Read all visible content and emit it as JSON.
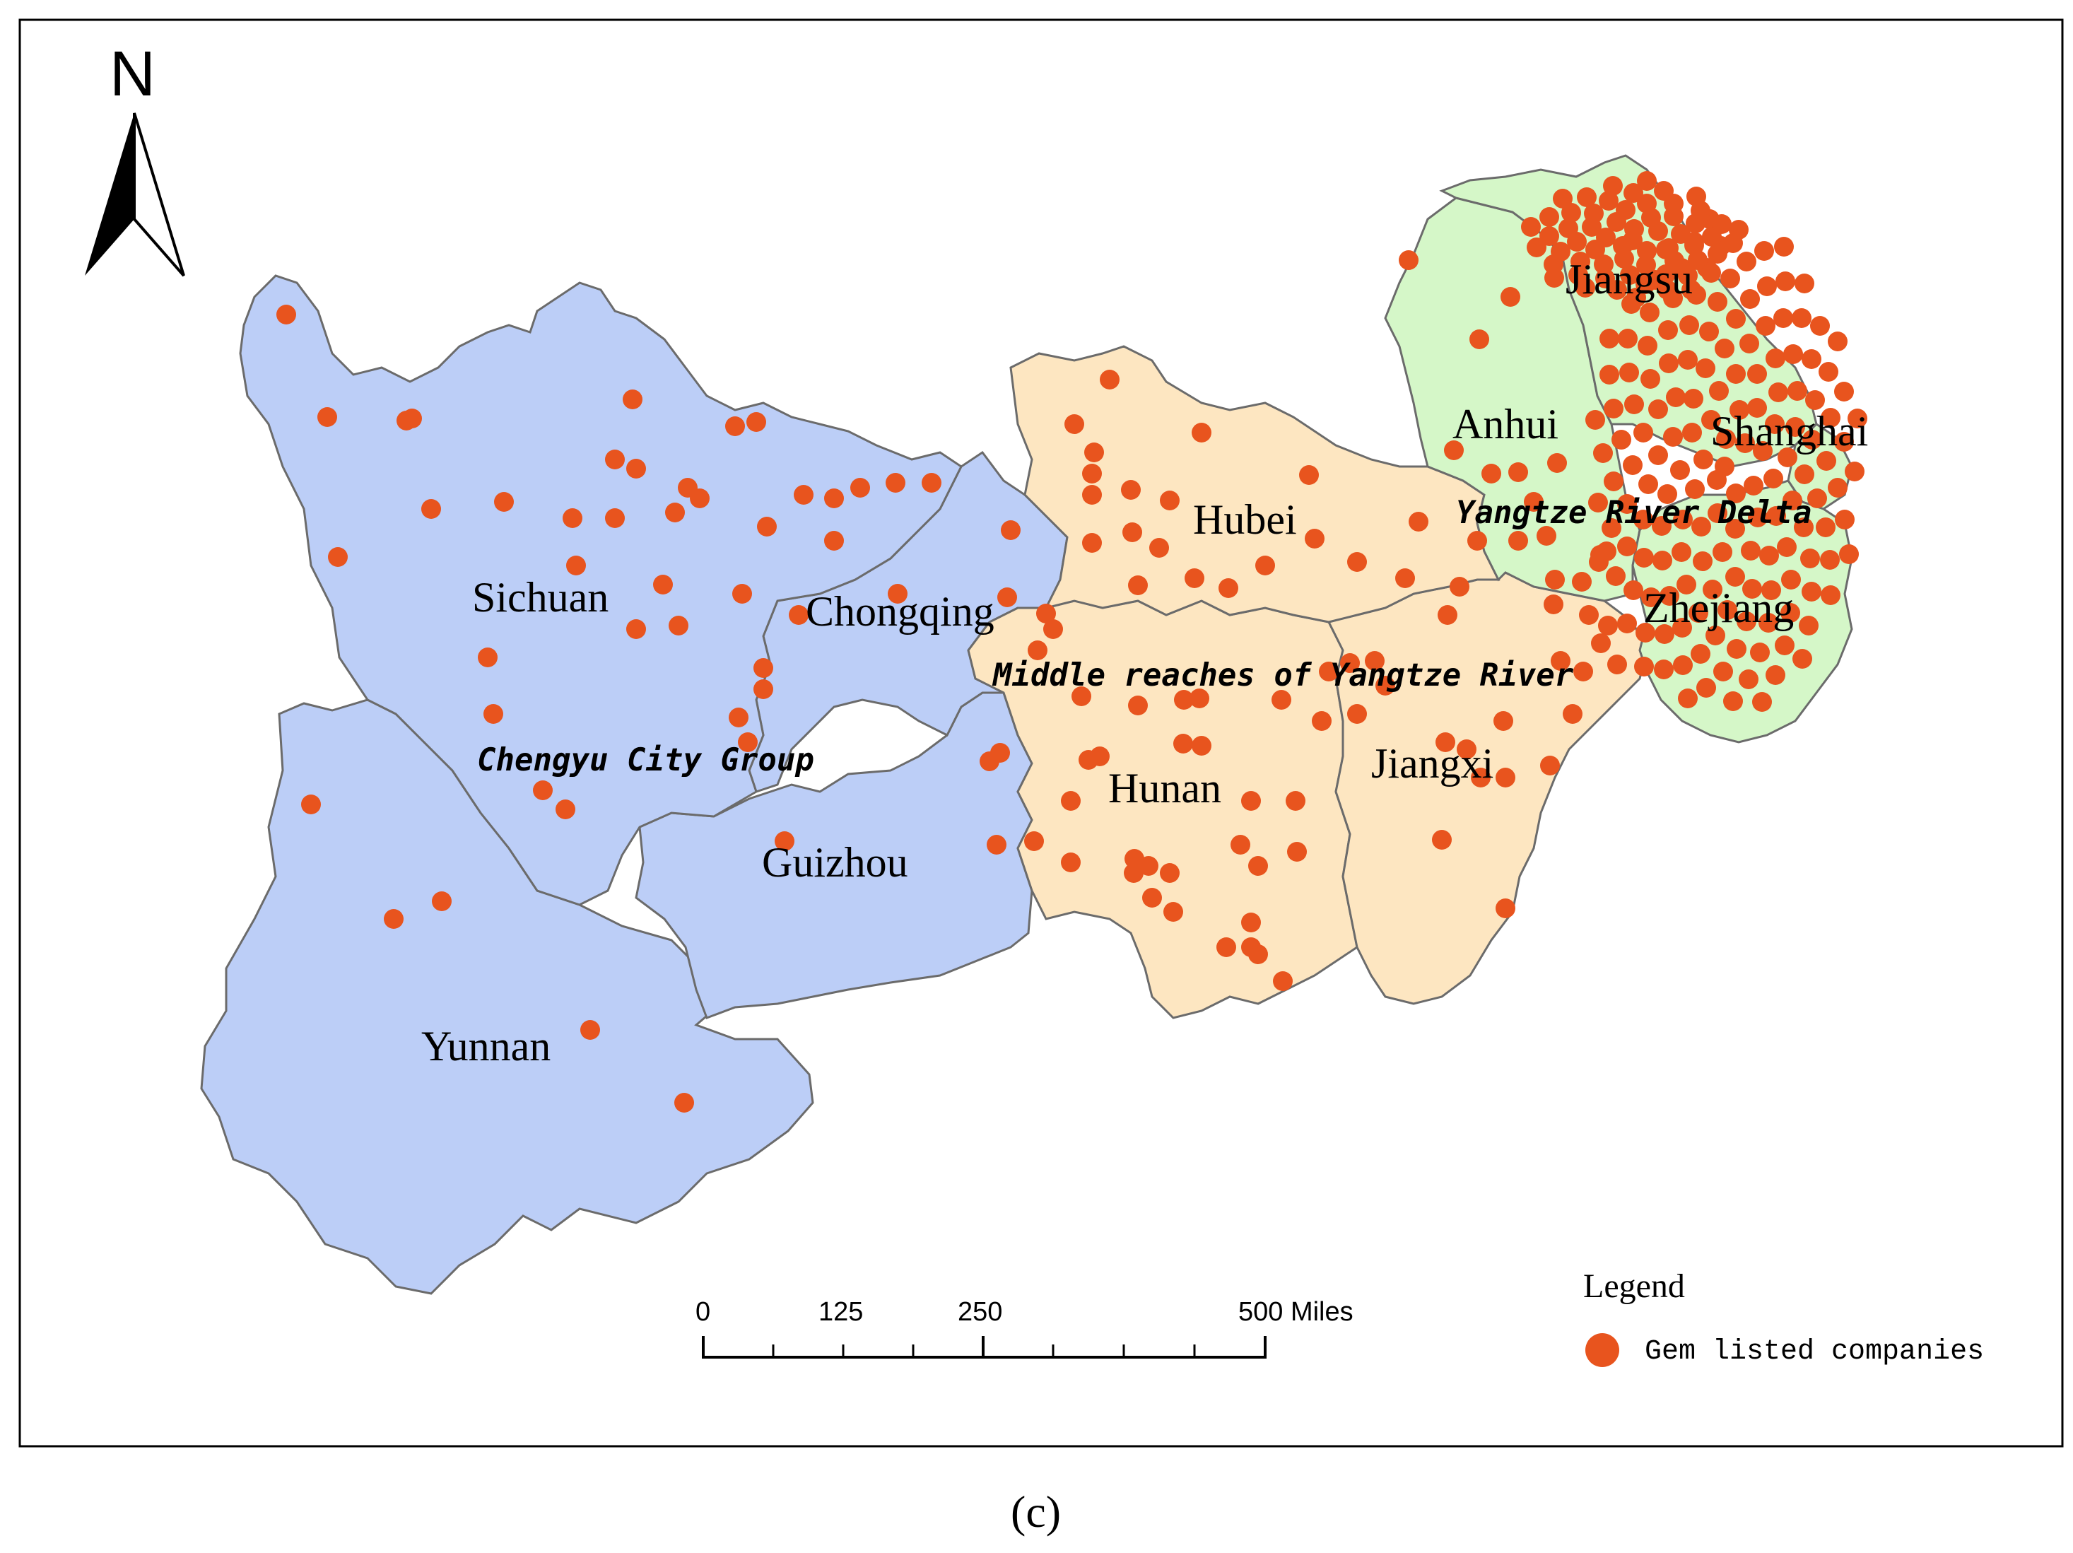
{
  "north_label": "N",
  "caption": "(c)",
  "legend": {
    "title": "Legend",
    "item_label": "Gem listed companies",
    "dot_color": "#e8541e"
  },
  "scale_bar": {
    "labels": [
      "0",
      "125",
      "250",
      "500 Miles"
    ]
  },
  "regions": {
    "west_color": "#bccef7",
    "central_color": "#fde6c1",
    "east_color": "#d5f7c8"
  },
  "provinces": {
    "sichuan": "Sichuan",
    "chongqing": "Chongqing",
    "guizhou": "Guizhou",
    "yunnan": "Yunnan",
    "hubei": "Hubei",
    "hunan": "Hunan",
    "jiangxi": "Jiangxi",
    "anhui": "Anhui",
    "jiangsu": "Jiangsu",
    "shanghai": "Shanghai",
    "zhejiang": "Zhejiang"
  },
  "region_labels": {
    "chengyu": "Chengyu City Group",
    "middle": "Middle reaches of Yangtze River",
    "delta": "Yangtze River Delta"
  }
}
